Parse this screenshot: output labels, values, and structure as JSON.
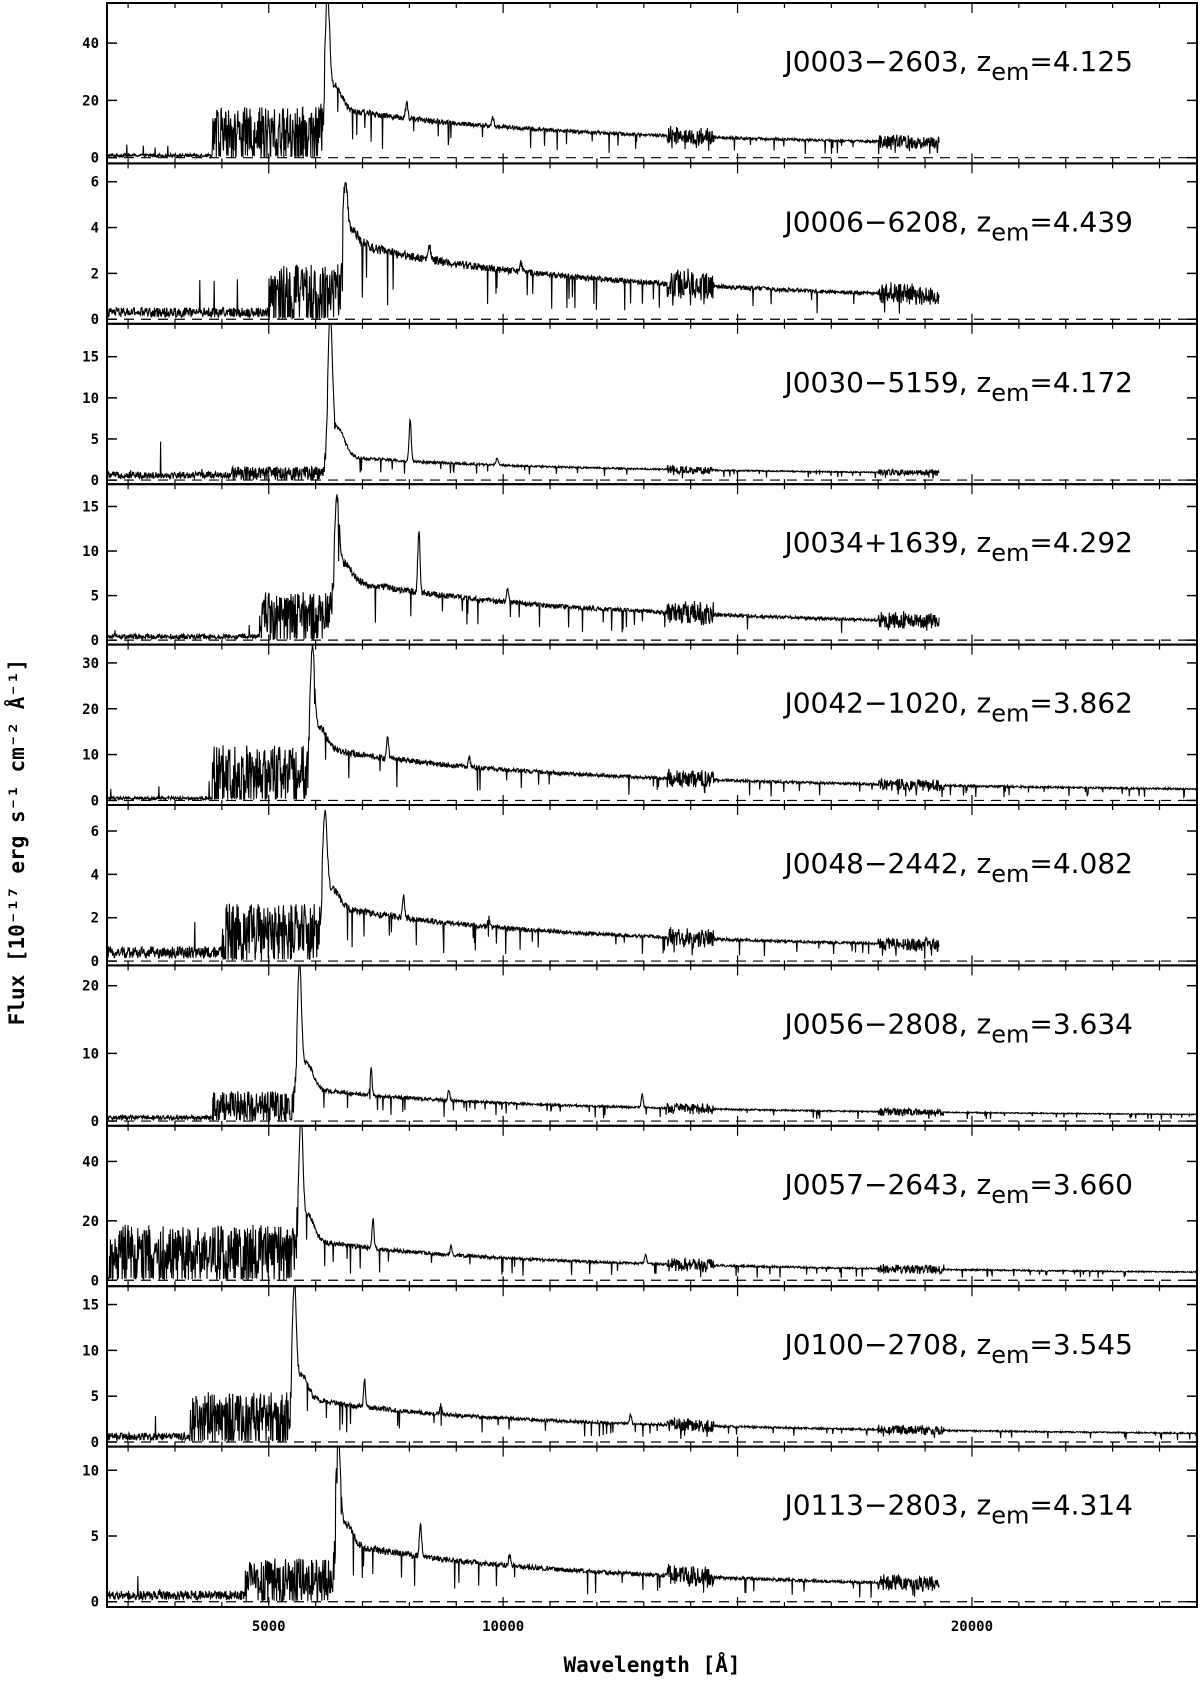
{
  "chart_data": {
    "type": "line",
    "xlabel": "Wavelength [Å]",
    "ylabel": "Flux [10⁻¹⁷ erg s⁻¹ cm⁻² Å⁻¹]",
    "xlim": [
      1550,
      24800
    ],
    "x_ticks": [
      5000,
      10000,
      20000
    ],
    "line_color": "#000000",
    "zero_line_style": "dashed",
    "panels": [
      {
        "label": "J0003−2603,",
        "z_label": "em",
        "z_value": "=4.125",
        "z": 4.125,
        "ylim": [
          -2,
          54
        ],
        "y_ticks": [
          0,
          20,
          40
        ],
        "y_tick_labels": [
          "0",
          "20",
          "40"
        ],
        "peak_flux": 53,
        "continuum_flux": 18,
        "forest_flux": 16,
        "forest_start": 3800,
        "pre_forest_flux": 0.8,
        "end": 19300,
        "lines": [
          {
            "rest": 1550,
            "height": 6
          },
          {
            "rest": 1908,
            "height": 3
          },
          {
            "rest": 2798,
            "height": 2
          }
        ]
      },
      {
        "label": "J0006−6208,",
        "z_label": "em",
        "z_value": "=4.439",
        "z": 4.439,
        "ylim": [
          -0.2,
          6.8
        ],
        "y_ticks": [
          0,
          2,
          4,
          6
        ],
        "y_tick_labels": [
          "0",
          "2",
          "4",
          "6"
        ],
        "peak_flux": 5.6,
        "continuum_flux": 3.4,
        "forest_flux": 2.2,
        "forest_start": 5000,
        "pre_forest_flux": 0.3,
        "end": 19300,
        "lines": [
          {
            "rest": 1550,
            "height": 0.6
          },
          {
            "rest": 1908,
            "height": 0.4
          }
        ]
      },
      {
        "label": "J0030−5159,",
        "z_label": "em",
        "z_value": "=4.172",
        "z": 4.172,
        "ylim": [
          -0.5,
          19
        ],
        "y_ticks": [
          0,
          5,
          10,
          15
        ],
        "y_tick_labels": [
          "0",
          "5",
          "10",
          "15"
        ],
        "peak_flux": 18.5,
        "continuum_flux": 3,
        "forest_flux": 1.5,
        "forest_start": 4200,
        "pre_forest_flux": 0.6,
        "end": 19300,
        "lines": [
          {
            "rest": 1550,
            "height": 5
          },
          {
            "rest": 1908,
            "height": 0.8
          }
        ]
      },
      {
        "label": "J0034+1639,",
        "z_label": "em",
        "z_value": "=4.292",
        "z": 4.292,
        "ylim": [
          -0.5,
          17.5
        ],
        "y_ticks": [
          0,
          5,
          10,
          15
        ],
        "y_tick_labels": [
          "0",
          "5",
          "10",
          "15"
        ],
        "peak_flux": 15,
        "continuum_flux": 7,
        "forest_flux": 5,
        "forest_start": 4800,
        "pre_forest_flux": 0.4,
        "end": 19300,
        "lines": [
          {
            "rest": 1550,
            "height": 7
          },
          {
            "rest": 1908,
            "height": 1.5
          }
        ]
      },
      {
        "label": "J0042−1020,",
        "z_label": "em",
        "z_value": "=3.862",
        "z": 3.862,
        "ylim": [
          -1,
          34
        ],
        "y_ticks": [
          0,
          10,
          20,
          30
        ],
        "y_tick_labels": [
          "0",
          "10",
          "20",
          "30"
        ],
        "peak_flux": 32,
        "continuum_flux": 12,
        "forest_flux": 11,
        "forest_start": 3800,
        "pre_forest_flux": 0.5,
        "end": 24800,
        "lines": [
          {
            "rest": 1550,
            "height": 5
          },
          {
            "rest": 1908,
            "height": 2
          }
        ]
      },
      {
        "label": "J0048−2442,",
        "z_label": "em",
        "z_value": "=4.082",
        "z": 4.082,
        "ylim": [
          -0.2,
          7.2
        ],
        "y_ticks": [
          0,
          2,
          4,
          6
        ],
        "y_tick_labels": [
          "0",
          "2",
          "4",
          "6"
        ],
        "peak_flux": 6.4,
        "continuum_flux": 2.6,
        "forest_flux": 2.4,
        "forest_start": 4000,
        "pre_forest_flux": 0.4,
        "end": 19300,
        "lines": [
          {
            "rest": 1550,
            "height": 1.0
          },
          {
            "rest": 1908,
            "height": 0.4
          }
        ]
      },
      {
        "label": "J0056−2808,",
        "z_label": "em",
        "z_value": "=3.634",
        "z": 3.634,
        "ylim": [
          -0.7,
          23
        ],
        "y_ticks": [
          0,
          10,
          20
        ],
        "y_tick_labels": [
          "0",
          "10",
          "20"
        ],
        "peak_flux": 22,
        "continuum_flux": 5,
        "forest_flux": 4,
        "forest_start": 3800,
        "pre_forest_flux": 0.5,
        "end": 24800,
        "lines": [
          {
            "rest": 1550,
            "height": 4
          },
          {
            "rest": 1908,
            "height": 1.5
          },
          {
            "rest": 2798,
            "height": 2
          }
        ]
      },
      {
        "label": "J0057−2643,",
        "z_label": "em",
        "z_value": "=3.660",
        "z": 3.66,
        "ylim": [
          -2,
          52
        ],
        "y_ticks": [
          0,
          20,
          40
        ],
        "y_tick_labels": [
          "0",
          "20",
          "40"
        ],
        "peak_flux": 52,
        "continuum_flux": 14,
        "forest_flux": 17,
        "forest_start": 1600,
        "pre_forest_flux": 0.5,
        "end": 24800,
        "lines": [
          {
            "rest": 1550,
            "height": 10
          },
          {
            "rest": 1908,
            "height": 3
          },
          {
            "rest": 2798,
            "height": 3
          }
        ]
      },
      {
        "label": "J0100−2708,",
        "z_label": "em",
        "z_value": "=3.545",
        "z": 3.545,
        "ylim": [
          -0.5,
          17
        ],
        "y_ticks": [
          0,
          5,
          10,
          15
        ],
        "y_tick_labels": [
          "0",
          "5",
          "10",
          "15"
        ],
        "peak_flux": 16.5,
        "continuum_flux": 5,
        "forest_flux": 5,
        "forest_start": 3300,
        "pre_forest_flux": 0.6,
        "end": 24800,
        "lines": [
          {
            "rest": 1550,
            "height": 3
          },
          {
            "rest": 1908,
            "height": 1
          },
          {
            "rest": 2798,
            "height": 1
          }
        ]
      },
      {
        "label": "J0113−2803,",
        "z_label": "em",
        "z_value": "=4.314",
        "z": 4.314,
        "ylim": [
          -0.4,
          11.8
        ],
        "y_ticks": [
          0,
          5,
          10
        ],
        "y_tick_labels": [
          "0",
          "5",
          "10"
        ],
        "peak_flux": 11.5,
        "continuum_flux": 4.5,
        "forest_flux": 3,
        "forest_start": 4500,
        "pre_forest_flux": 0.5,
        "end": 19300,
        "lines": [
          {
            "rest": 1550,
            "height": 2.5
          },
          {
            "rest": 1908,
            "height": 0.8
          }
        ]
      }
    ]
  }
}
